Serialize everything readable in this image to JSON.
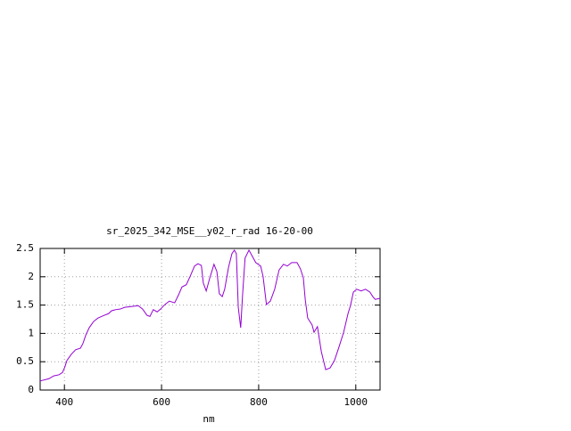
{
  "chart_data": {
    "type": "line",
    "title": "sr_2025_342_MSE__y02_r_rad 16-20-00",
    "x_label": "nm",
    "x": [
      350,
      368,
      378,
      389,
      396,
      401,
      405,
      414,
      423,
      433,
      438,
      444,
      451,
      460,
      469,
      482,
      491,
      497,
      506,
      515,
      524,
      543,
      552,
      561,
      570,
      576,
      583,
      591,
      598,
      607,
      616,
      627,
      635,
      642,
      651,
      659,
      668,
      675,
      682,
      686,
      692,
      699,
      708,
      714,
      719,
      725,
      730,
      738,
      745,
      750,
      754,
      758,
      763,
      767,
      772,
      780,
      787,
      794,
      804,
      809,
      816,
      824,
      833,
      842,
      851,
      859,
      868,
      879,
      886,
      892,
      896,
      901,
      910,
      914,
      921,
      929,
      938,
      947,
      956,
      965,
      975,
      984,
      989,
      995,
      1002,
      1011,
      1020,
      1029,
      1035,
      1040,
      1050
    ],
    "series": [
      {
        "name": "sr_2025_342_MSE__y02_r_rad 16-20-00",
        "color": "#9400d3",
        "values": [
          0.16,
          0.2,
          0.25,
          0.27,
          0.31,
          0.41,
          0.52,
          0.63,
          0.71,
          0.74,
          0.82,
          0.97,
          1.1,
          1.21,
          1.27,
          1.32,
          1.35,
          1.4,
          1.42,
          1.43,
          1.46,
          1.48,
          1.49,
          1.43,
          1.32,
          1.3,
          1.42,
          1.38,
          1.43,
          1.51,
          1.57,
          1.54,
          1.68,
          1.82,
          1.86,
          2.01,
          2.19,
          2.23,
          2.2,
          1.89,
          1.75,
          1.97,
          2.22,
          2.09,
          1.7,
          1.65,
          1.78,
          2.17,
          2.41,
          2.47,
          2.41,
          1.46,
          1.1,
          1.7,
          2.33,
          2.47,
          2.36,
          2.25,
          2.19,
          2.01,
          1.51,
          1.57,
          1.78,
          2.12,
          2.22,
          2.19,
          2.25,
          2.25,
          2.14,
          1.98,
          1.59,
          1.27,
          1.15,
          1.02,
          1.12,
          0.68,
          0.36,
          0.39,
          0.52,
          0.75,
          1.02,
          1.35,
          1.49,
          1.73,
          1.78,
          1.75,
          1.78,
          1.73,
          1.65,
          1.6,
          1.62
        ]
      }
    ],
    "xlim": [
      350,
      1050
    ],
    "xticks": [
      400,
      600,
      800,
      1000
    ],
    "ylim": [
      0,
      2.5
    ],
    "yticks": [
      0,
      {
        "value": 0.5,
        "label": "0.5"
      },
      1,
      {
        "value": 1.5,
        "label": "1.5"
      },
      2,
      {
        "value": 2.5,
        "label": "2.5"
      }
    ],
    "grid": true
  }
}
